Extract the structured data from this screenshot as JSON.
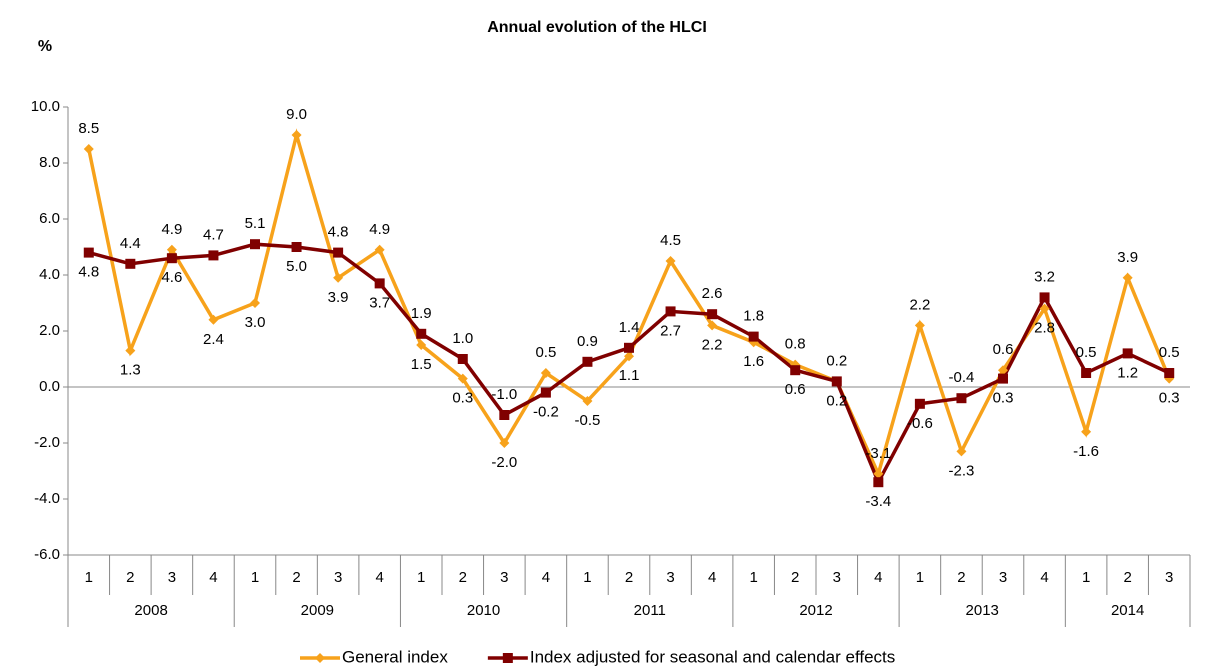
{
  "chart_data": {
    "type": "line",
    "title": "Annual evolution of the HLCI",
    "y_label": "%",
    "categories": [
      "1",
      "2",
      "3",
      "4",
      "1",
      "2",
      "3",
      "4",
      "1",
      "2",
      "3",
      "4",
      "1",
      "2",
      "3",
      "4",
      "1",
      "2",
      "3",
      "4",
      "1",
      "2",
      "3",
      "4",
      "1",
      "2",
      "3"
    ],
    "years": [
      "2008",
      "2009",
      "2010",
      "2011",
      "2012",
      "2013",
      "2014"
    ],
    "ylim": [
      -6,
      10
    ],
    "yticks": [
      {
        "value": -6,
        "label": "-6.0"
      },
      {
        "value": -4,
        "label": "-4.0"
      },
      {
        "value": -2,
        "label": "-2.0"
      },
      {
        "value": 0,
        "label": "0.0"
      },
      {
        "value": 2,
        "label": "2.0"
      },
      {
        "value": 4,
        "label": "4.0"
      },
      {
        "value": 6,
        "label": "6.0"
      },
      {
        "value": 8,
        "label": "8.0"
      },
      {
        "value": 10,
        "label": "10.0"
      }
    ],
    "series": [
      {
        "name": "General index",
        "color": "#f7a21b",
        "marker": "diamond",
        "values": [
          8.5,
          1.3,
          4.9,
          2.4,
          3.0,
          9.0,
          3.9,
          4.9,
          1.5,
          0.3,
          -2.0,
          0.5,
          -0.5,
          1.1,
          4.5,
          2.2,
          1.6,
          0.8,
          0.2,
          -3.1,
          2.2,
          -2.3,
          0.6,
          2.8,
          -1.6,
          3.9,
          0.3
        ],
        "value_labels": [
          "8.5",
          "1.3",
          "4.9",
          "2.4",
          "3.0",
          "9.0",
          "3.9",
          "4.9",
          "1.5",
          "0.3",
          "-2.0",
          "0.5",
          "-0.5",
          "1.1",
          "4.5",
          "2.2",
          "1.6",
          "0.8",
          "0.2",
          "-3.1",
          "2.2",
          "-2.3",
          "0.6",
          "2.8",
          "-1.6",
          "3.9",
          "0.3"
        ]
      },
      {
        "name": "Index adjusted for seasonal and calendar effects",
        "color": "#800000",
        "marker": "square",
        "values": [
          4.8,
          4.4,
          4.6,
          4.7,
          5.1,
          5.0,
          4.8,
          3.7,
          1.9,
          1.0,
          -1.0,
          -0.2,
          0.9,
          1.4,
          2.7,
          2.6,
          1.8,
          0.6,
          0.2,
          -3.4,
          -0.6,
          -0.4,
          0.3,
          3.2,
          0.5,
          1.2,
          0.5
        ],
        "value_labels": [
          "4.8",
          "4.4",
          "4.6",
          "4.7",
          "5.1",
          "5.0",
          "4.8",
          "3.7",
          "1.9",
          "1.0",
          "-1.0",
          "-0.2",
          "0.9",
          "1.4",
          "2.7",
          "2.6",
          "1.8",
          "0.6",
          "0.2",
          "-3.4",
          "-0.6",
          "-0.4",
          "0.3",
          "3.2",
          "0.5",
          "1.2",
          "0.5"
        ]
      }
    ]
  }
}
